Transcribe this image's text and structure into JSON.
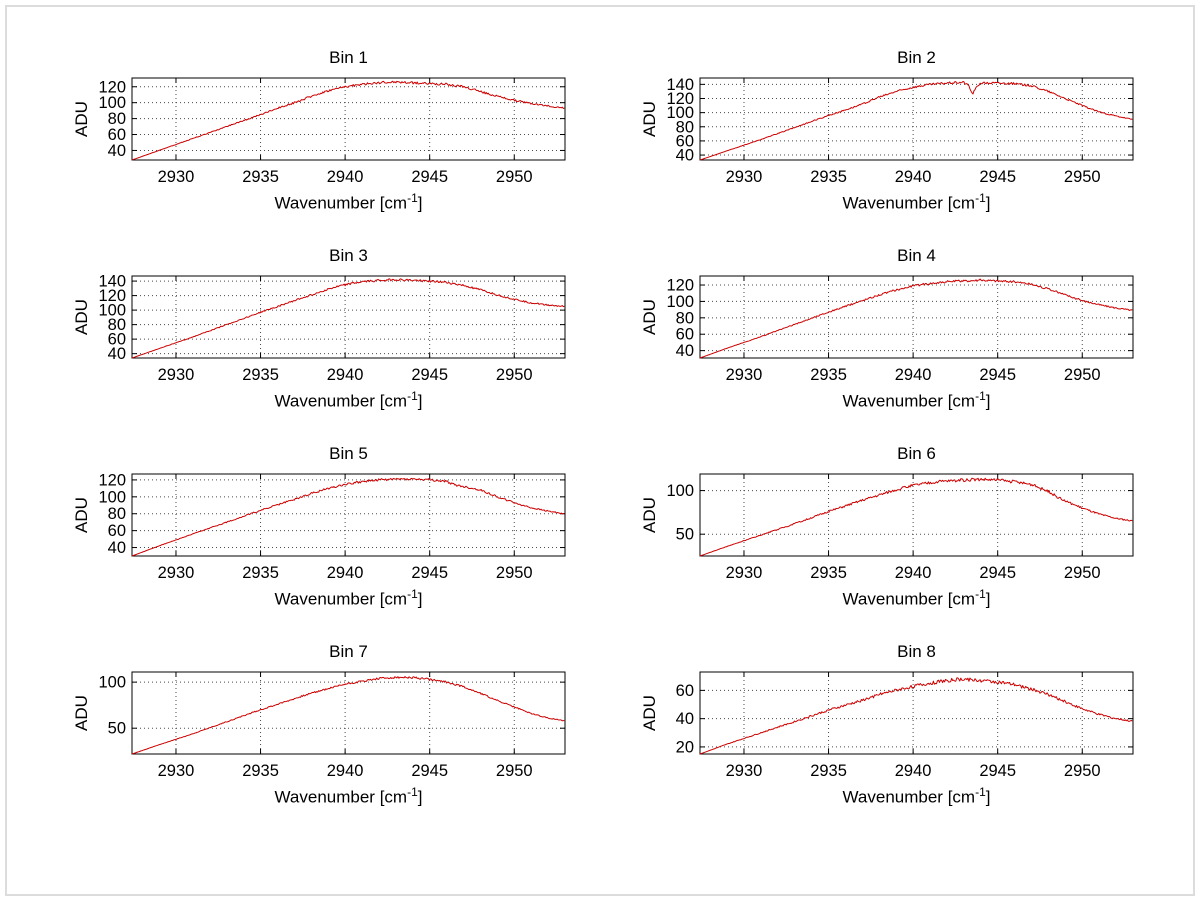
{
  "labels": {
    "ylabel": "ADU",
    "xlabel_prefix": "Wavenumber [cm",
    "xlabel_superscript": "-1",
    "xlabel_suffix": "]"
  },
  "style": {
    "line_color": "#cc0000",
    "axis_color": "#000000",
    "grid_color": "#4a4a4a",
    "text_color": "#000000",
    "background": "#ffffff"
  },
  "chart_data": [
    {
      "type": "line",
      "title": "Bin 1",
      "xlabel": "Wavenumber [cm^-1]",
      "ylabel": "ADU",
      "xlim": [
        2927.4,
        2953
      ],
      "ylim": [
        28,
        131
      ],
      "xticks": [
        2930,
        2935,
        2940,
        2945,
        2950
      ],
      "yticks": [
        40,
        60,
        80,
        100,
        120
      ],
      "grid": true,
      "noise": 1.5,
      "points": [
        [
          2927.4,
          28
        ],
        [
          2929,
          40
        ],
        [
          2931,
          55
        ],
        [
          2933,
          70
        ],
        [
          2935,
          85
        ],
        [
          2936,
          93
        ],
        [
          2937,
          100
        ],
        [
          2938,
          108
        ],
        [
          2939,
          115
        ],
        [
          2940,
          120
        ],
        [
          2941,
          123
        ],
        [
          2942,
          125
        ],
        [
          2943,
          126
        ],
        [
          2944,
          125
        ],
        [
          2945,
          124
        ],
        [
          2946,
          123
        ],
        [
          2947,
          120
        ],
        [
          2948,
          114
        ],
        [
          2949,
          108
        ],
        [
          2950,
          103
        ],
        [
          2951,
          99
        ],
        [
          2952,
          96
        ],
        [
          2953,
          93
        ]
      ]
    },
    {
      "type": "line",
      "title": "Bin 2",
      "xlabel": "Wavenumber [cm^-1]",
      "ylabel": "ADU",
      "xlim": [
        2927.4,
        2953
      ],
      "ylim": [
        33,
        149
      ],
      "xticks": [
        2930,
        2935,
        2940,
        2945,
        2950
      ],
      "yticks": [
        40,
        60,
        80,
        100,
        120,
        140
      ],
      "grid": true,
      "noise": 1.5,
      "points": [
        [
          2927.4,
          33
        ],
        [
          2929,
          46
        ],
        [
          2931,
          62
        ],
        [
          2933,
          79
        ],
        [
          2935,
          96
        ],
        [
          2937,
          112
        ],
        [
          2938,
          122
        ],
        [
          2939,
          130
        ],
        [
          2940,
          136
        ],
        [
          2941,
          140
        ],
        [
          2942,
          142
        ],
        [
          2943,
          143
        ],
        [
          2943.3,
          138
        ],
        [
          2943.5,
          126
        ],
        [
          2943.8,
          138
        ],
        [
          2944,
          142
        ],
        [
          2945,
          142
        ],
        [
          2946,
          141
        ],
        [
          2947,
          138
        ],
        [
          2948,
          130
        ],
        [
          2949,
          120
        ],
        [
          2950,
          110
        ],
        [
          2951,
          101
        ],
        [
          2952,
          95
        ],
        [
          2953,
          90
        ]
      ]
    },
    {
      "type": "line",
      "title": "Bin 3",
      "xlabel": "Wavenumber [cm^-1]",
      "ylabel": "ADU",
      "xlim": [
        2927.4,
        2953
      ],
      "ylim": [
        34,
        147
      ],
      "xticks": [
        2930,
        2935,
        2940,
        2945,
        2950
      ],
      "yticks": [
        40,
        60,
        80,
        100,
        120,
        140
      ],
      "grid": true,
      "noise": 1.5,
      "points": [
        [
          2927.4,
          34
        ],
        [
          2929,
          47
        ],
        [
          2931,
          63
        ],
        [
          2933,
          80
        ],
        [
          2935,
          97
        ],
        [
          2937,
          113
        ],
        [
          2938,
          121
        ],
        [
          2939,
          129
        ],
        [
          2940,
          135
        ],
        [
          2941,
          139
        ],
        [
          2942,
          141
        ],
        [
          2943,
          142
        ],
        [
          2944,
          141
        ],
        [
          2945,
          140
        ],
        [
          2946,
          138
        ],
        [
          2947,
          134
        ],
        [
          2948,
          128
        ],
        [
          2949,
          121
        ],
        [
          2950,
          115
        ],
        [
          2951,
          110
        ],
        [
          2952,
          107
        ],
        [
          2953,
          105
        ]
      ]
    },
    {
      "type": "line",
      "title": "Bin 4",
      "xlabel": "Wavenumber [cm^-1]",
      "ylabel": "ADU",
      "xlim": [
        2927.4,
        2953
      ],
      "ylim": [
        31,
        131
      ],
      "xticks": [
        2930,
        2935,
        2940,
        2945,
        2950
      ],
      "yticks": [
        40,
        60,
        80,
        100,
        120
      ],
      "grid": true,
      "noise": 1.4,
      "points": [
        [
          2927.4,
          31
        ],
        [
          2929,
          43
        ],
        [
          2931,
          57
        ],
        [
          2933,
          72
        ],
        [
          2935,
          87
        ],
        [
          2937,
          101
        ],
        [
          2938,
          108
        ],
        [
          2939,
          114
        ],
        [
          2940,
          119
        ],
        [
          2941,
          122
        ],
        [
          2942,
          124
        ],
        [
          2943,
          125
        ],
        [
          2944,
          126
        ],
        [
          2945,
          125
        ],
        [
          2946,
          124
        ],
        [
          2947,
          121
        ],
        [
          2948,
          115
        ],
        [
          2949,
          108
        ],
        [
          2950,
          101
        ],
        [
          2951,
          96
        ],
        [
          2952,
          92
        ],
        [
          2953,
          89
        ]
      ]
    },
    {
      "type": "line",
      "title": "Bin 5",
      "xlabel": "Wavenumber [cm^-1]",
      "ylabel": "ADU",
      "xlim": [
        2927.4,
        2953
      ],
      "ylim": [
        30,
        127
      ],
      "xticks": [
        2930,
        2935,
        2940,
        2945,
        2950
      ],
      "yticks": [
        40,
        60,
        80,
        100,
        120
      ],
      "grid": true,
      "noise": 1.4,
      "points": [
        [
          2927.4,
          30
        ],
        [
          2929,
          42
        ],
        [
          2931,
          56
        ],
        [
          2933,
          70
        ],
        [
          2935,
          84
        ],
        [
          2937,
          97
        ],
        [
          2938,
          104
        ],
        [
          2939,
          110
        ],
        [
          2940,
          115
        ],
        [
          2941,
          118
        ],
        [
          2942,
          120
        ],
        [
          2943,
          121
        ],
        [
          2944,
          121
        ],
        [
          2945,
          120
        ],
        [
          2946,
          118
        ],
        [
          2946.5,
          114
        ],
        [
          2947,
          112
        ],
        [
          2948,
          108
        ],
        [
          2949,
          100
        ],
        [
          2950,
          93
        ],
        [
          2951,
          87
        ],
        [
          2952,
          83
        ],
        [
          2953,
          80
        ]
      ]
    },
    {
      "type": "line",
      "title": "Bin 6",
      "xlabel": "Wavenumber [cm^-1]",
      "ylabel": "ADU",
      "xlim": [
        2927.4,
        2953
      ],
      "ylim": [
        25,
        119
      ],
      "xticks": [
        2930,
        2935,
        2940,
        2945,
        2950
      ],
      "yticks": [
        50,
        100
      ],
      "grid": true,
      "noise": 1.8,
      "points": [
        [
          2927.4,
          25
        ],
        [
          2929,
          36
        ],
        [
          2931,
          49
        ],
        [
          2933,
          62
        ],
        [
          2935,
          76
        ],
        [
          2937,
          89
        ],
        [
          2938,
          95
        ],
        [
          2939,
          101
        ],
        [
          2940,
          106
        ],
        [
          2941,
          109
        ],
        [
          2942,
          111
        ],
        [
          2943,
          112
        ],
        [
          2944,
          113
        ],
        [
          2945,
          112
        ],
        [
          2946,
          110
        ],
        [
          2947,
          107
        ],
        [
          2948,
          99
        ],
        [
          2948.5,
          93
        ],
        [
          2949,
          88
        ],
        [
          2950,
          80
        ],
        [
          2951,
          73
        ],
        [
          2952,
          68
        ],
        [
          2953,
          65
        ]
      ]
    },
    {
      "type": "line",
      "title": "Bin 7",
      "xlabel": "Wavenumber [cm^-1]",
      "ylabel": "ADU",
      "xlim": [
        2927.4,
        2953
      ],
      "ylim": [
        22,
        111
      ],
      "xticks": [
        2930,
        2935,
        2940,
        2945,
        2950
      ],
      "yticks": [
        50,
        100
      ],
      "grid": true,
      "noise": 1.1,
      "points": [
        [
          2927.4,
          22
        ],
        [
          2929,
          32
        ],
        [
          2931,
          44
        ],
        [
          2933,
          57
        ],
        [
          2935,
          70
        ],
        [
          2937,
          82
        ],
        [
          2938,
          88
        ],
        [
          2939,
          93
        ],
        [
          2940,
          98
        ],
        [
          2941,
          101
        ],
        [
          2942,
          104
        ],
        [
          2943,
          105
        ],
        [
          2944,
          105
        ],
        [
          2945,
          103
        ],
        [
          2946,
          100
        ],
        [
          2947,
          95
        ],
        [
          2948,
          88
        ],
        [
          2949,
          80
        ],
        [
          2950,
          73
        ],
        [
          2951,
          66
        ],
        [
          2952,
          61
        ],
        [
          2953,
          58
        ]
      ]
    },
    {
      "type": "line",
      "title": "Bin 8",
      "xlabel": "Wavenumber [cm^-1]",
      "ylabel": "ADU",
      "xlim": [
        2927.4,
        2953
      ],
      "ylim": [
        15,
        73
      ],
      "xticks": [
        2930,
        2935,
        2940,
        2945,
        2950
      ],
      "yticks": [
        20,
        40,
        60
      ],
      "grid": true,
      "noise": 1.3,
      "points": [
        [
          2927.4,
          15
        ],
        [
          2929,
          22
        ],
        [
          2931,
          30
        ],
        [
          2933,
          38
        ],
        [
          2935,
          46
        ],
        [
          2937,
          53
        ],
        [
          2938,
          57
        ],
        [
          2939,
          60
        ],
        [
          2940,
          63
        ],
        [
          2941,
          65
        ],
        [
          2942,
          67
        ],
        [
          2943,
          68
        ],
        [
          2944,
          67
        ],
        [
          2945,
          66
        ],
        [
          2946,
          64
        ],
        [
          2947,
          61
        ],
        [
          2948,
          57
        ],
        [
          2949,
          52
        ],
        [
          2950,
          47
        ],
        [
          2951,
          43
        ],
        [
          2952,
          40
        ],
        [
          2953,
          38
        ]
      ]
    }
  ]
}
